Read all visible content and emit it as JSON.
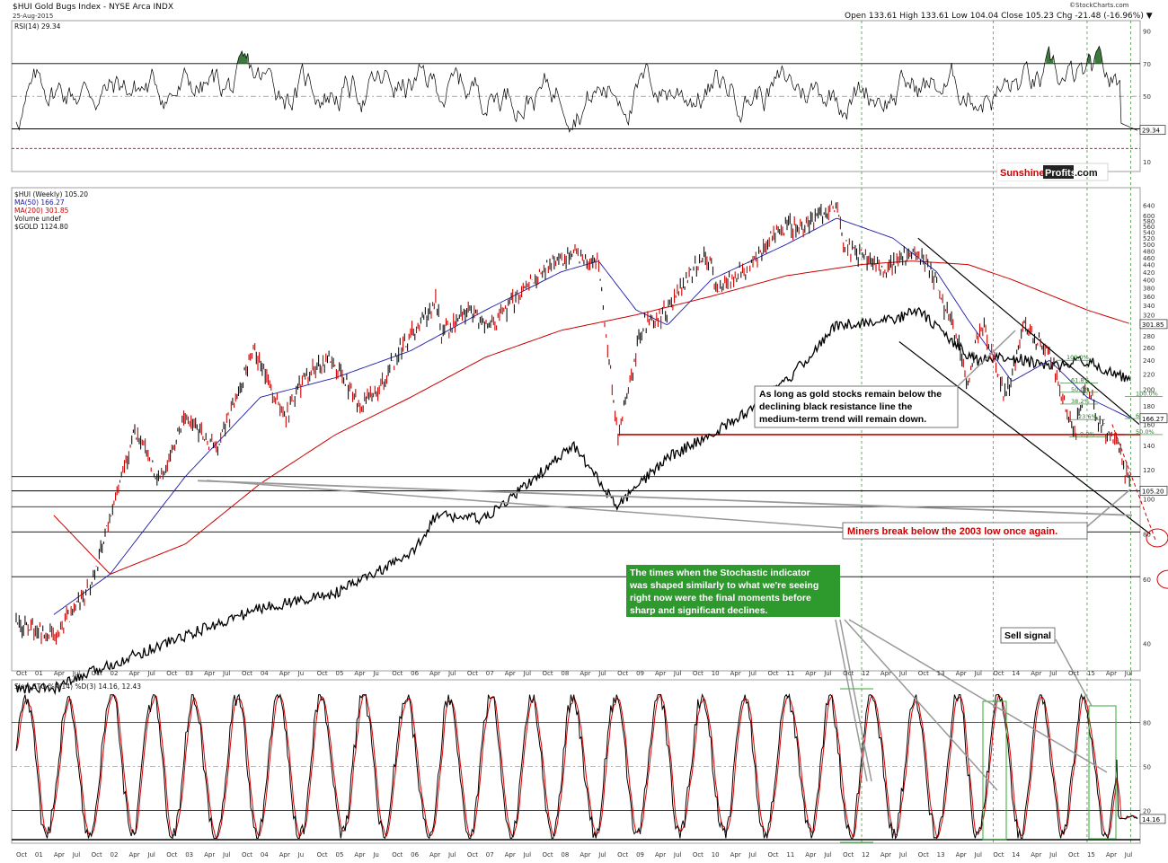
{
  "header": {
    "title": "$HUI Gold Bugs Index - NYSE Arca INDX",
    "date": "25-Aug-2015",
    "quote": "Open 133.61 High 133.61 Low 104.04 Close 105.23 Chg -21.48 (-16.96%) ▼",
    "credit": "©StockCharts.com"
  },
  "brand": {
    "part1": "Sunshine",
    "part2": "Profits",
    "part3": ".com"
  },
  "colors": {
    "price_black": "#111111",
    "price_red": "#cc0000",
    "ma50": "#1a1aa8",
    "ma200": "#cc0000",
    "gold": "#000000",
    "rsi_overbought_fill": "#3b7a3b",
    "rsi_oversold_fill": "#8b4a44",
    "stoch_k": "#000000",
    "stoch_d": "#dd0000",
    "vertical_marker": "#33aa33",
    "annotation_green_bg": "#2e9a2e",
    "fib": "#2a7a2a",
    "brand_red": "#cc0000"
  },
  "chart_data": [
    {
      "panel": "rsi",
      "type": "line",
      "legend": "RSI(14) 29.34",
      "last_value": "29.34",
      "ylim": [
        0,
        100
      ],
      "y_ticks": [
        "90",
        "70",
        "50",
        "10"
      ],
      "levels": [
        70,
        50,
        30,
        18
      ]
    },
    {
      "panel": "price",
      "type": "line",
      "y_scale": "log",
      "legend": [
        "$HUI (Weekly) 105.20",
        "MA(50) 166.27",
        "MA(200) 301.85",
        "Volume undef",
        "$GOLD 1124.80"
      ],
      "y_ticks": [
        640,
        600,
        580,
        560,
        540,
        520,
        500,
        480,
        460,
        440,
        420,
        400,
        380,
        360,
        340,
        320,
        300,
        280,
        260,
        240,
        220,
        200,
        180,
        160,
        140,
        120,
        100,
        80,
        60,
        40
      ],
      "y_tick_labels": [
        "640",
        "600",
        "580",
        "560",
        "540",
        "520",
        "500",
        "480",
        "460",
        "440",
        "420",
        "400",
        "380",
        "360",
        "340",
        "320",
        "300",
        "280",
        "260",
        "240",
        "220",
        "200",
        "180",
        "160",
        "140",
        "120",
        "100",
        "80",
        "60",
        "40"
      ],
      "value_labels": [
        "301.85",
        "166.27",
        "105.20"
      ],
      "series": [
        {
          "name": "$HUI (Weekly)",
          "x": [
            "2000-10",
            "2001-04",
            "2001-10",
            "2002-01",
            "2002-05",
            "2002-09",
            "2003-01",
            "2003-06",
            "2003-12",
            "2004-05",
            "2004-08",
            "2004-12",
            "2005-05",
            "2005-08",
            "2005-11",
            "2006-05",
            "2006-06",
            "2006-10",
            "2007-02",
            "2007-06",
            "2007-11",
            "2008-03",
            "2008-07",
            "2008-10",
            "2009-02",
            "2009-06",
            "2009-12",
            "2010-02",
            "2010-07",
            "2010-12",
            "2011-04",
            "2011-09",
            "2011-10",
            "2012-05",
            "2012-09",
            "2012-12",
            "2013-04",
            "2013-06",
            "2013-08",
            "2013-12",
            "2014-03",
            "2014-07",
            "2014-11",
            "2015-01",
            "2015-03",
            "2015-06",
            "2015-08"
          ],
          "values": [
            45,
            42,
            58,
            88,
            155,
            110,
            170,
            135,
            258,
            165,
            215,
            245,
            180,
            200,
            250,
            350,
            280,
            330,
            300,
            360,
            440,
            470,
            440,
            150,
            300,
            330,
            480,
            380,
            430,
            560,
            560,
            640,
            500,
            430,
            470,
            430,
            280,
            210,
            310,
            190,
            300,
            250,
            150,
            210,
            160,
            140,
            105
          ]
        },
        {
          "name": "MA(50)",
          "x": [
            "2001-04",
            "2002-01",
            "2003-01",
            "2004-01",
            "2005-01",
            "2006-01",
            "2007-01",
            "2008-01",
            "2008-07",
            "2009-01",
            "2009-06",
            "2010-01",
            "2011-01",
            "2011-09",
            "2012-06",
            "2013-01",
            "2013-06",
            "2014-01",
            "2014-07",
            "2015-01",
            "2015-08"
          ],
          "values": [
            48,
            62,
            115,
            190,
            215,
            255,
            330,
            420,
            450,
            330,
            300,
            400,
            500,
            590,
            520,
            420,
            310,
            210,
            240,
            190,
            166
          ]
        },
        {
          "name": "MA(200)",
          "x": [
            "2001-04",
            "2002-01",
            "2003-01",
            "2004-01",
            "2005-01",
            "2006-01",
            "2007-01",
            "2008-01",
            "2009-01",
            "2010-01",
            "2011-01",
            "2012-01",
            "2012-09",
            "2013-06",
            "2014-01",
            "2015-01",
            "2015-08"
          ],
          "values": [
            90,
            62,
            75,
            110,
            150,
            190,
            245,
            290,
            320,
            360,
            410,
            440,
            450,
            440,
            400,
            330,
            302
          ]
        },
        {
          "name": "$GOLD",
          "x": [
            "2000-10",
            "2001-04",
            "2002-01",
            "2003-01",
            "2004-01",
            "2005-01",
            "2006-01",
            "2006-05",
            "2007-01",
            "2008-03",
            "2008-10",
            "2009-06",
            "2010-01",
            "2010-06",
            "2011-01",
            "2011-09",
            "2012-06",
            "2012-10",
            "2013-04",
            "2013-07",
            "2014-01",
            "2014-07",
            "2015-01",
            "2015-08"
          ],
          "values": [
            30,
            30,
            35,
            42,
            50,
            55,
            70,
            90,
            88,
            140,
            95,
            130,
            150,
            170,
            210,
            300,
            310,
            330,
            265,
            240,
            245,
            230,
            240,
            210
          ]
        }
      ]
    },
    {
      "panel": "stochastic",
      "type": "line",
      "legend": "Slow STO %K(14) %D(3) 14.16, 12.43",
      "last_value": "14.16",
      "ylim": [
        0,
        100
      ],
      "y_ticks": [
        "80",
        "50",
        "20"
      ],
      "series": [
        {
          "name": "%K(14)",
          "last": 14.16
        },
        {
          "name": "%D(3)",
          "last": 12.43
        }
      ]
    }
  ],
  "x_axis": {
    "labels": [
      "Oct",
      "01",
      "Apr",
      "Jul",
      "Oct",
      "02",
      "Apr",
      "Jul",
      "Oct",
      "03",
      "Apr",
      "Jul",
      "Oct",
      "04",
      "Apr",
      "Ju",
      "Oct",
      "05",
      "Apr",
      "Ju",
      "Oct",
      "06",
      "Apr",
      "Jul",
      "Oct",
      "07",
      "Apr",
      "Jul",
      "Oct",
      "08",
      "Apr",
      "Jul",
      "Oct",
      "09",
      "Apr",
      "Jul",
      "Oct",
      "10",
      "Apr",
      "Jul",
      "Oct",
      "11",
      "Apr",
      "Jul",
      "Oct",
      "12",
      "Apr",
      "Jul",
      "Oct",
      "13",
      "Apr",
      "Jul",
      "Oct",
      "14",
      "Apr",
      "Jul",
      "Oct",
      "15",
      "Apr",
      "Jul"
    ]
  },
  "fib_levels": [
    "100.0%",
    "61.8%",
    "50.0%",
    "38.2%",
    "23.6%",
    "0.0%",
    "100.0%",
    "61.8%",
    "50.0%"
  ],
  "annotations": {
    "resistance": [
      "As long as gold stocks remain below the",
      "declining black resistance line the",
      "medium-term trend will remain down."
    ],
    "miners": "Miners break below the 2003 low once again.",
    "stochastic": [
      "The times when the Stochastic indicator",
      "was shaped similarly to what we're seeing",
      "right now were the final moments before",
      "sharp and significant declines."
    ],
    "sell": "Sell signal"
  }
}
